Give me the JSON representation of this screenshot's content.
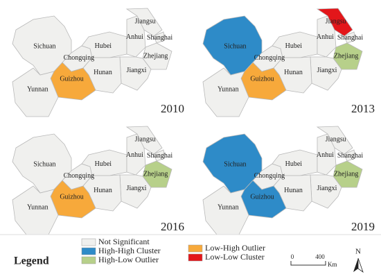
{
  "maps": [
    {
      "year": "2010",
      "regions": [
        {
          "name": "Sichuan",
          "color": "#f0f0ee"
        },
        {
          "name": "Chongqing",
          "color": "#f0f0ee"
        },
        {
          "name": "Hubei",
          "color": "#f0f0ee"
        },
        {
          "name": "Anhui",
          "color": "#f0f0ee"
        },
        {
          "name": "Jiangsu",
          "color": "#f0f0ee"
        },
        {
          "name": "Shanghai",
          "color": "#f0f0ee"
        },
        {
          "name": "Zhejiang",
          "color": "#f0f0ee"
        },
        {
          "name": "Jiangxi",
          "color": "#f0f0ee"
        },
        {
          "name": "Hunan",
          "color": "#f0f0ee"
        },
        {
          "name": "Guizhou",
          "color": "#f7a93b"
        },
        {
          "name": "Yunnan",
          "color": "#f0f0ee"
        }
      ]
    },
    {
      "year": "2013",
      "regions": [
        {
          "name": "Sichuan",
          "color": "#2e8bc8"
        },
        {
          "name": "Chongqing",
          "color": "#f0f0ee"
        },
        {
          "name": "Hubei",
          "color": "#f0f0ee"
        },
        {
          "name": "Anhui",
          "color": "#f0f0ee"
        },
        {
          "name": "Jiangsu",
          "color": "#e3161a"
        },
        {
          "name": "Shanghai",
          "color": "#f0f0ee"
        },
        {
          "name": "Zhejiang",
          "color": "#b7d08a"
        },
        {
          "name": "Jiangxi",
          "color": "#f0f0ee"
        },
        {
          "name": "Hunan",
          "color": "#f0f0ee"
        },
        {
          "name": "Guizhou",
          "color": "#f7a93b"
        },
        {
          "name": "Yunnan",
          "color": "#f0f0ee"
        }
      ]
    },
    {
      "year": "2016",
      "regions": [
        {
          "name": "Sichuan",
          "color": "#f0f0ee"
        },
        {
          "name": "Chongqing",
          "color": "#f0f0ee"
        },
        {
          "name": "Hubei",
          "color": "#f0f0ee"
        },
        {
          "name": "Anhui",
          "color": "#f0f0ee"
        },
        {
          "name": "Jiangsu",
          "color": "#f0f0ee"
        },
        {
          "name": "Shanghai",
          "color": "#f0f0ee"
        },
        {
          "name": "Zhejiang",
          "color": "#b7d08a"
        },
        {
          "name": "Jiangxi",
          "color": "#f0f0ee"
        },
        {
          "name": "Hunan",
          "color": "#f0f0ee"
        },
        {
          "name": "Guizhou",
          "color": "#f7a93b"
        },
        {
          "name": "Yunnan",
          "color": "#f0f0ee"
        }
      ]
    },
    {
      "year": "2019",
      "regions": [
        {
          "name": "Sichuan",
          "color": "#2e8bc8"
        },
        {
          "name": "Chongqing",
          "color": "#f0f0ee"
        },
        {
          "name": "Hubei",
          "color": "#f0f0ee"
        },
        {
          "name": "Anhui",
          "color": "#f0f0ee"
        },
        {
          "name": "Jiangsu",
          "color": "#f0f0ee"
        },
        {
          "name": "Shanghai",
          "color": "#f0f0ee"
        },
        {
          "name": "Zhejiang",
          "color": "#b7d08a"
        },
        {
          "name": "Jiangxi",
          "color": "#f0f0ee"
        },
        {
          "name": "Hunan",
          "color": "#f0f0ee"
        },
        {
          "name": "Guizhou",
          "color": "#2e8bc8"
        },
        {
          "name": "Yunnan",
          "color": "#f0f0ee"
        }
      ]
    }
  ],
  "legend": {
    "title": "Legend",
    "items": [
      {
        "name": "Not Significant",
        "color": "#f0f0ee"
      },
      {
        "name": "High-High Cluster",
        "color": "#2e8bc8"
      },
      {
        "name": "High-Low Outlier",
        "color": "#b7d08a"
      },
      {
        "name": "Low-High Outlier",
        "color": "#f7a93b"
      },
      {
        "name": "Low-Low Cluster",
        "color": "#e3161a"
      }
    ]
  },
  "scale_bar": {
    "labels": [
      "0",
      "400"
    ],
    "unit": "Km"
  },
  "north": "N"
}
